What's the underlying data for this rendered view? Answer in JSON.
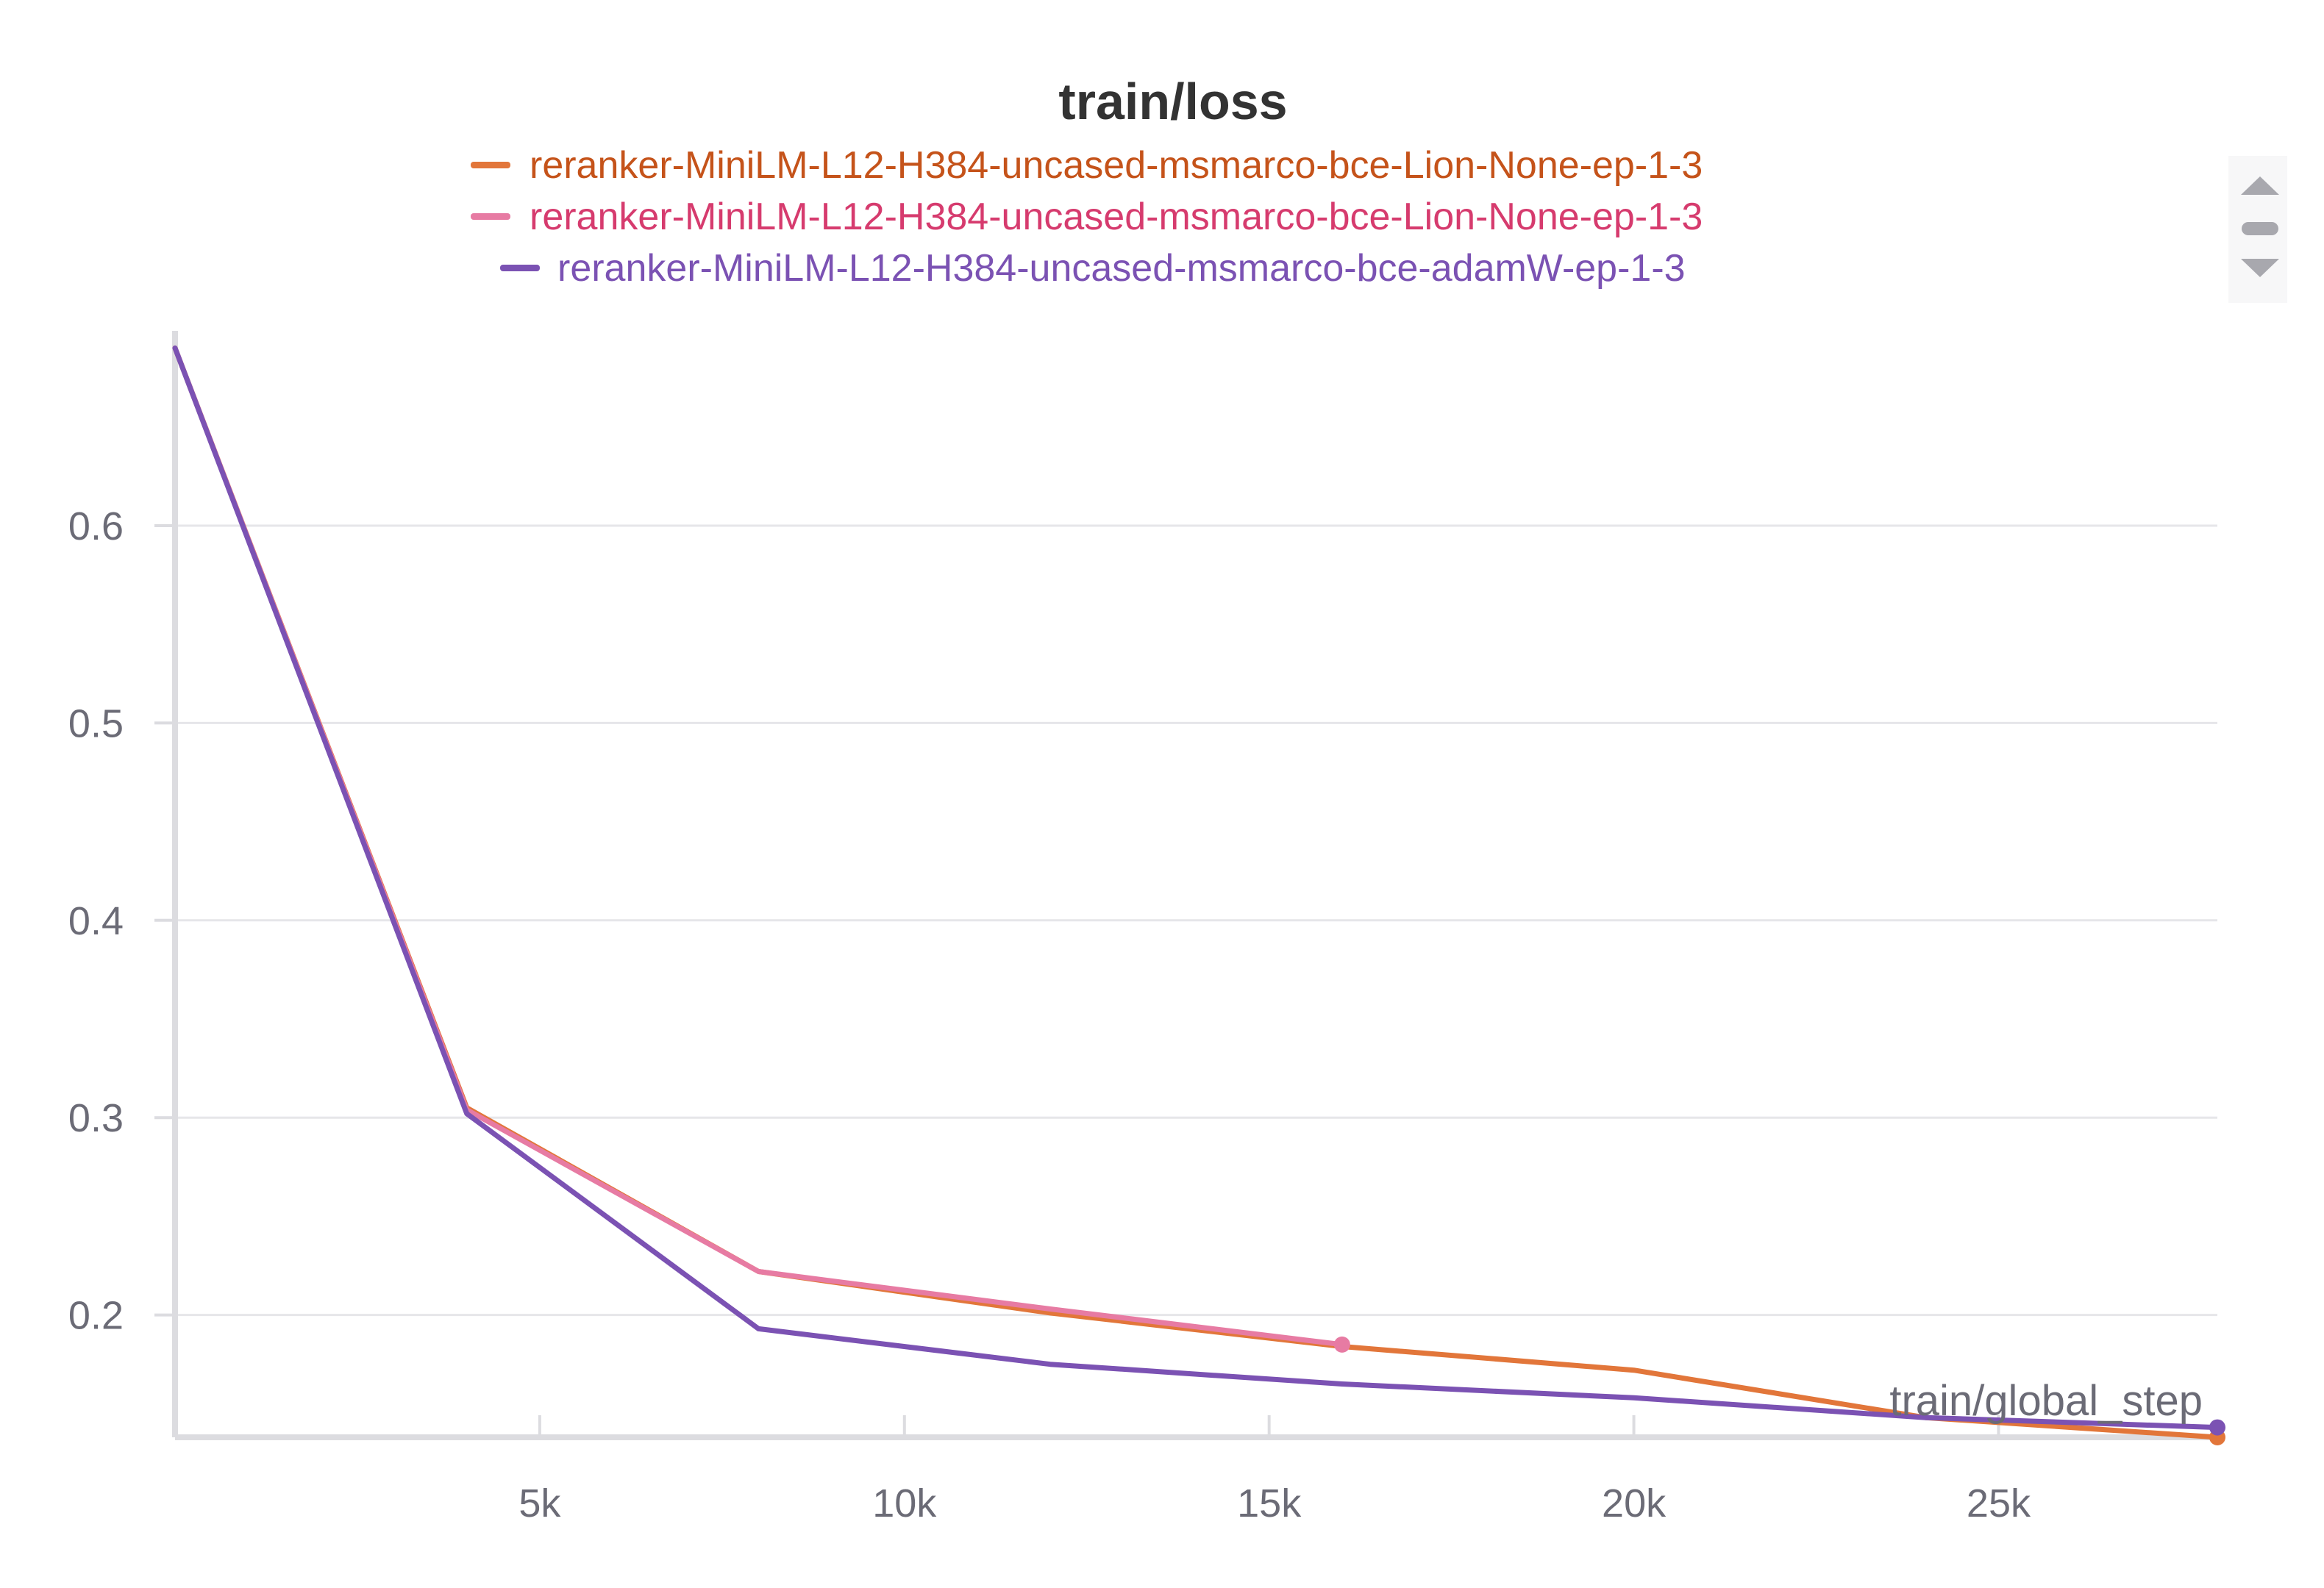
{
  "chart_data": {
    "type": "line",
    "title": "train/loss",
    "xlabel": "train/global_step",
    "ylabel": "",
    "xlim": [
      0,
      28000
    ],
    "ylim": [
      0.138,
      0.695
    ],
    "x_ticks": [
      {
        "value": 5000,
        "label": "5k"
      },
      {
        "value": 10000,
        "label": "10k"
      },
      {
        "value": 15000,
        "label": "15k"
      },
      {
        "value": 20000,
        "label": "20k"
      },
      {
        "value": 25000,
        "label": "25k"
      }
    ],
    "y_ticks": [
      {
        "value": 0.2,
        "label": "0.2"
      },
      {
        "value": 0.3,
        "label": "0.3"
      },
      {
        "value": 0.4,
        "label": "0.4"
      },
      {
        "value": 0.5,
        "label": "0.5"
      },
      {
        "value": 0.6,
        "label": "0.6"
      }
    ],
    "grid": true,
    "legend_position": "top-center",
    "series": [
      {
        "name": "reranker-MiniLM-L12-H384-uncased-msmarco-bce-Lion-None-ep-1-3",
        "color": "#e2763a",
        "text_color": "#c5531a",
        "x": [
          0,
          4000,
          8000,
          12000,
          16000,
          20000,
          24000,
          28000
        ],
        "y": [
          0.69,
          0.305,
          0.222,
          0.201,
          0.184,
          0.172,
          0.148,
          0.138
        ],
        "end_marker": true
      },
      {
        "name": "reranker-MiniLM-L12-H384-uncased-msmarco-bce-Lion-None-ep-1-3",
        "color": "#e77ba3",
        "text_color": "#d63b6e",
        "x": [
          0,
          4000,
          8000,
          12000,
          16000
        ],
        "y": [
          0.69,
          0.304,
          0.222,
          0.203,
          0.185
        ],
        "end_marker": true
      },
      {
        "name": "reranker-MiniLM-L12-H384-uncased-msmarco-bce-adamW-ep-1-3",
        "color": "#7b52b3",
        "text_color": "#7b52b3",
        "x": [
          0,
          4000,
          8000,
          12000,
          16000,
          20000,
          24000,
          28000
        ],
        "y": [
          0.69,
          0.302,
          0.193,
          0.175,
          0.165,
          0.158,
          0.148,
          0.143
        ],
        "end_marker": true
      }
    ]
  }
}
